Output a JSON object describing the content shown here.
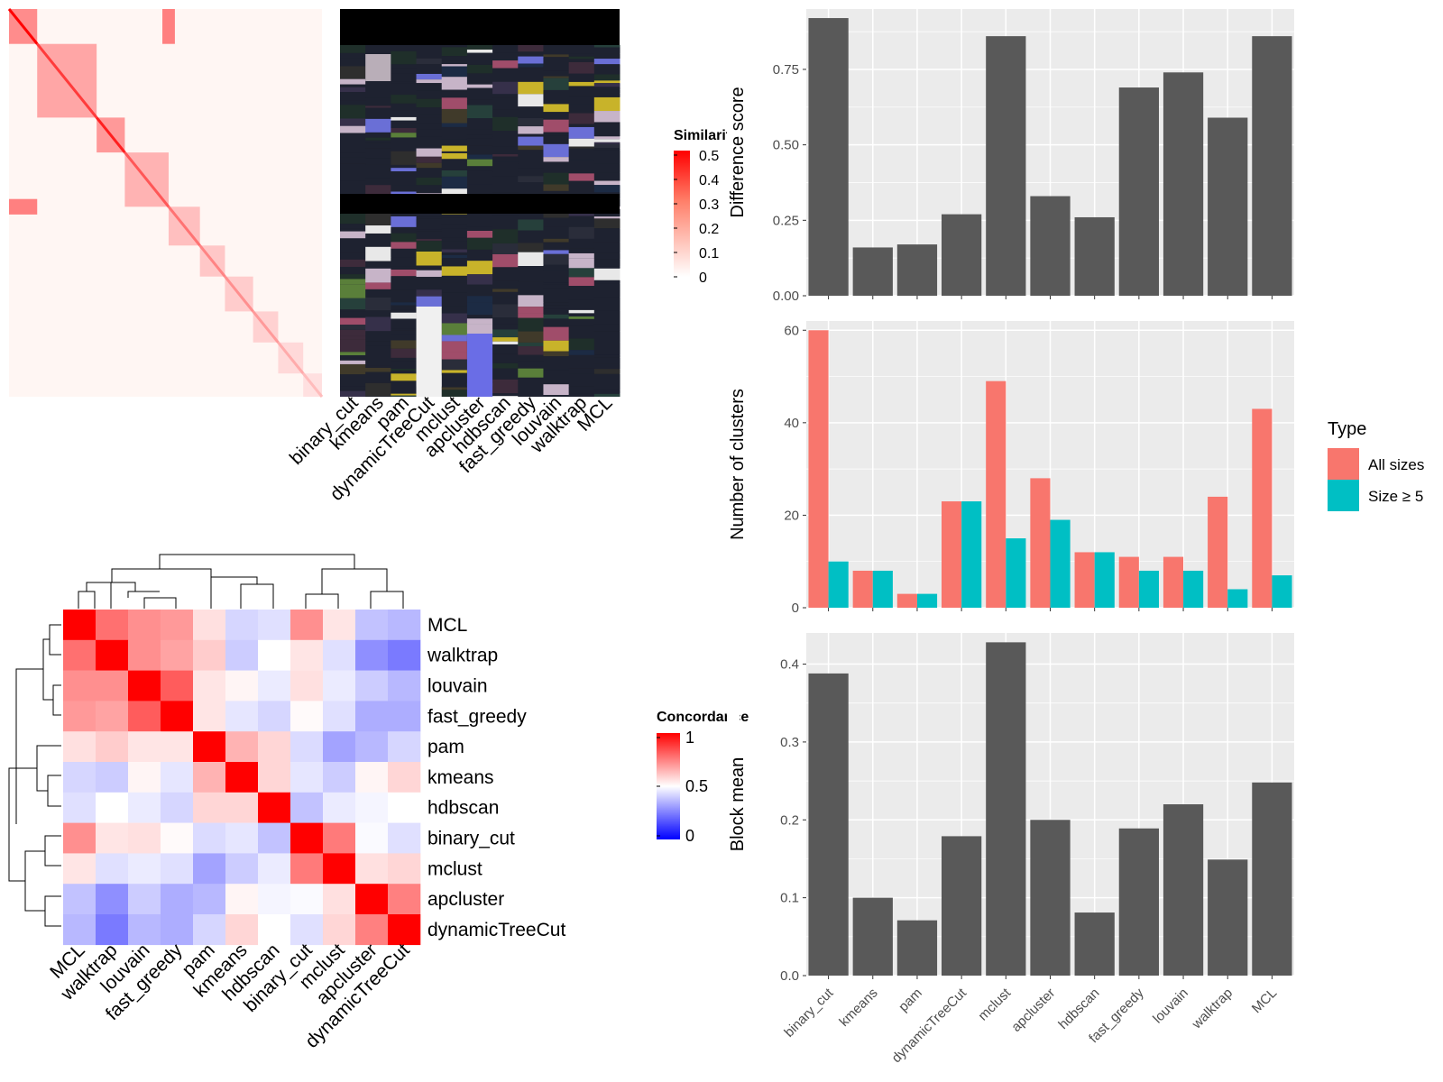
{
  "colors": {
    "panel_bg": "#EBEBEB",
    "grid": "#FFFFFF",
    "bar_dark": "#595959",
    "all_sizes": "#F8766D",
    "size_ge5": "#00BFC4",
    "sim_high": "#FF0000",
    "conc_low": "#0000FF",
    "conc_mid": "#FFFFFF",
    "conc_high": "#FF0000"
  },
  "methods": [
    "binary_cut",
    "kmeans",
    "pam",
    "dynamicTreeCut",
    "mclust",
    "apcluster",
    "hdbscan",
    "fast_greedy",
    "louvain",
    "walktrap",
    "MCL"
  ],
  "similarity_legend": {
    "title": "Similarity",
    "ticks": [
      "0.5",
      "0.4",
      "0.3",
      "0.2",
      "0.1",
      "0"
    ]
  },
  "concordance_legend": {
    "title": "Concordance",
    "ticks": [
      "1",
      "0.5",
      "0"
    ]
  },
  "chart_data": [
    {
      "type": "heatmap",
      "name": "similarity matrix",
      "color_scale": {
        "min": 0,
        "max": 0.5
      },
      "blocks": [
        0.45,
        0.35,
        0.4,
        0.3,
        0.25,
        0.22,
        0.2,
        0.18,
        0.15,
        0.12
      ],
      "column_labels": [
        "binary_cut",
        "kmeans",
        "pam",
        "dynamicTreeCut",
        "mclust",
        "apcluster",
        "hdbscan",
        "fast_greedy",
        "louvain",
        "walktrap",
        "MCL"
      ]
    },
    {
      "type": "heatmap",
      "name": "concordance matrix",
      "row_labels": [
        "MCL",
        "walktrap",
        "louvain",
        "fast_greedy",
        "pam",
        "kmeans",
        "hdbscan",
        "binary_cut",
        "mclust",
        "apcluster",
        "dynamicTreeCut"
      ],
      "column_labels": [
        "MCL",
        "walktrap",
        "louvain",
        "fast_greedy",
        "pam",
        "kmeans",
        "hdbscan",
        "binary_cut",
        "mclust",
        "apcluster",
        "dynamicTreeCut"
      ],
      "color_scale": {
        "min": 0,
        "mid": 0.5,
        "max": 1
      },
      "values": [
        [
          1.0,
          0.78,
          0.72,
          0.7,
          0.56,
          0.42,
          0.44,
          0.72,
          0.55,
          0.38,
          0.36
        ],
        [
          0.78,
          1.0,
          0.72,
          0.68,
          0.6,
          0.4,
          0.5,
          0.55,
          0.44,
          0.28,
          0.24
        ],
        [
          0.72,
          0.72,
          1.0,
          0.82,
          0.55,
          0.52,
          0.46,
          0.56,
          0.46,
          0.4,
          0.36
        ],
        [
          0.7,
          0.68,
          0.82,
          1.0,
          0.55,
          0.45,
          0.42,
          0.51,
          0.44,
          0.34,
          0.34
        ],
        [
          0.56,
          0.6,
          0.55,
          0.55,
          1.0,
          0.65,
          0.58,
          0.43,
          0.32,
          0.36,
          0.42
        ],
        [
          0.42,
          0.4,
          0.52,
          0.45,
          0.65,
          1.0,
          0.58,
          0.45,
          0.4,
          0.52,
          0.58
        ],
        [
          0.44,
          0.5,
          0.46,
          0.42,
          0.58,
          0.58,
          1.0,
          0.38,
          0.46,
          0.48,
          0.5
        ],
        [
          0.72,
          0.55,
          0.56,
          0.51,
          0.43,
          0.45,
          0.38,
          1.0,
          0.76,
          0.49,
          0.44
        ],
        [
          0.55,
          0.44,
          0.46,
          0.44,
          0.32,
          0.4,
          0.46,
          0.76,
          1.0,
          0.56,
          0.58
        ],
        [
          0.38,
          0.28,
          0.4,
          0.34,
          0.36,
          0.52,
          0.48,
          0.49,
          0.56,
          1.0,
          0.75
        ],
        [
          0.36,
          0.24,
          0.36,
          0.34,
          0.42,
          0.58,
          0.5,
          0.44,
          0.58,
          0.75,
          1.0
        ]
      ]
    },
    {
      "type": "bar",
      "categories": [
        "binary_cut",
        "kmeans",
        "pam",
        "dynamicTreeCut",
        "mclust",
        "apcluster",
        "hdbscan",
        "fast_greedy",
        "louvain",
        "walktrap",
        "MCL"
      ],
      "values": [
        0.92,
        0.16,
        0.17,
        0.27,
        0.86,
        0.33,
        0.26,
        0.69,
        0.74,
        0.59,
        0.86
      ],
      "ylabel": "Difference score",
      "ylim": [
        0,
        0.95
      ],
      "yticks": [
        "0.00",
        "0.25",
        "0.50",
        "0.75"
      ],
      "grid": true
    },
    {
      "type": "bar",
      "categories": [
        "binary_cut",
        "kmeans",
        "pam",
        "dynamicTreeCut",
        "mclust",
        "apcluster",
        "hdbscan",
        "fast_greedy",
        "louvain",
        "walktrap",
        "MCL"
      ],
      "series": [
        {
          "name": "All sizes",
          "values": [
            60,
            8,
            3,
            23,
            49,
            28,
            12,
            11,
            11,
            24,
            43
          ]
        },
        {
          "name": "Size ≥ 5",
          "values": [
            10,
            8,
            3,
            23,
            15,
            19,
            12,
            8,
            8,
            4,
            7
          ]
        }
      ],
      "ylabel": "Number of clusters",
      "ylim": [
        0,
        62
      ],
      "yticks": [
        "0",
        "20",
        "40",
        "60"
      ],
      "legend": {
        "title": "Type",
        "position": "right"
      },
      "grid": true
    },
    {
      "type": "bar",
      "categories": [
        "binary_cut",
        "kmeans",
        "pam",
        "dynamicTreeCut",
        "mclust",
        "apcluster",
        "hdbscan",
        "fast_greedy",
        "louvain",
        "walktrap",
        "MCL"
      ],
      "values": [
        0.388,
        0.1,
        0.071,
        0.179,
        0.428,
        0.2,
        0.081,
        0.189,
        0.22,
        0.149,
        0.248
      ],
      "ylabel": "Block mean",
      "ylim": [
        0,
        0.44
      ],
      "yticks": [
        "0.0",
        "0.1",
        "0.2",
        "0.3",
        "0.4"
      ],
      "grid": true
    }
  ]
}
